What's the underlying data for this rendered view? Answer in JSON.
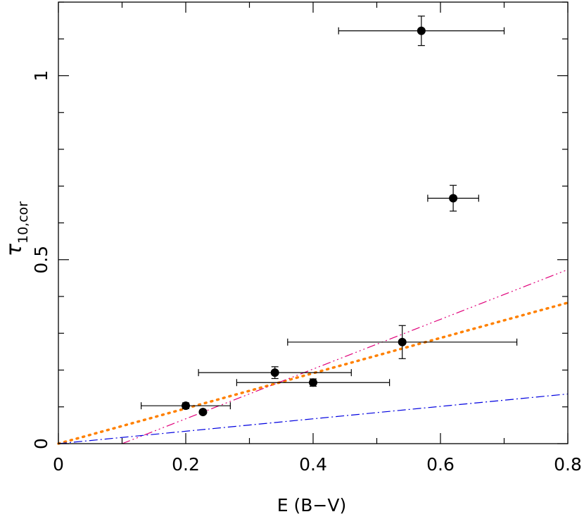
{
  "chart_data": {
    "type": "scatter",
    "xlabel": "E (B−V)",
    "ylabel": {
      "main": "τ",
      "sub": "10,cor"
    },
    "xlim": [
      0,
      0.8
    ],
    "ylim": [
      0,
      1.2
    ],
    "x_ticks": [
      {
        "value": 0,
        "label": "0"
      },
      {
        "value": 0.2,
        "label": "0.2"
      },
      {
        "value": 0.4,
        "label": "0.4"
      },
      {
        "value": 0.6,
        "label": "0.6"
      },
      {
        "value": 0.8,
        "label": "0.8"
      }
    ],
    "y_ticks": [
      {
        "value": 0,
        "label": "0"
      },
      {
        "value": 0.5,
        "label": "0.5"
      },
      {
        "value": 1,
        "label": "1"
      }
    ],
    "x_minor_step": 0.1,
    "y_minor_step": 0.1,
    "grid": false,
    "series": [
      {
        "type": "scatter",
        "color": "#000000",
        "points": [
          {
            "x": 0.2,
            "y": 0.103,
            "xerr": 0.07,
            "yerr": 0.008
          },
          {
            "x": 0.227,
            "y": 0.086,
            "xerr": 0,
            "yerr": 0
          },
          {
            "x": 0.34,
            "y": 0.193,
            "xerr": 0.12,
            "yerr": 0.016
          },
          {
            "x": 0.4,
            "y": 0.166,
            "xerr": 0.12,
            "yerr": 0.01
          },
          {
            "x": 0.54,
            "y": 0.276,
            "xerr": 0.18,
            "yerr": 0.045
          },
          {
            "x": 0.57,
            "y": 1.122,
            "xerr": 0.13,
            "yerr": 0.04
          },
          {
            "x": 0.62,
            "y": 0.667,
            "xerr": 0.04,
            "yerr": 0.035
          }
        ]
      }
    ],
    "lines": [
      {
        "style": "dot",
        "color": "#ff8000",
        "width": 3.5,
        "x": [
          0,
          0.8
        ],
        "y": [
          0,
          0.383
        ]
      },
      {
        "style": "dash-dot-dot-dot",
        "color": "#e0007a",
        "width": 1.2,
        "x": [
          0.1,
          0.8
        ],
        "y": [
          0,
          0.473
        ]
      },
      {
        "style": "dash-dot",
        "color": "#0000e0",
        "width": 1.2,
        "x": [
          0,
          0.8
        ],
        "y": [
          0,
          0.135
        ]
      }
    ]
  }
}
